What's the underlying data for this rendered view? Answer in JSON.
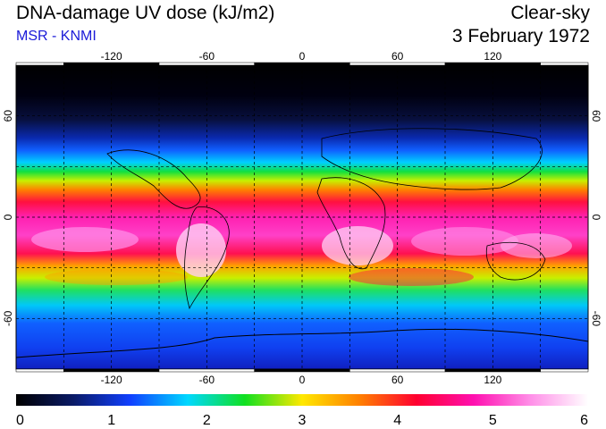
{
  "header": {
    "title": "DNA-damage UV dose (kJ/m2)",
    "subtitle": "MSR - KNMI",
    "condition": "Clear-sky",
    "date": "3 February 1972"
  },
  "map": {
    "lon_ticks": [
      "-120",
      "-60",
      "0",
      "60",
      "120"
    ],
    "lat_ticks": [
      "60",
      "0",
      "-60"
    ],
    "lon_values": [
      -120,
      -60,
      0,
      60,
      120
    ],
    "lat_values": [
      60,
      0,
      -60
    ],
    "lon_range": [
      -180,
      180
    ],
    "lat_range": [
      -90,
      90
    ],
    "grid_lon_step": 30,
    "grid_lat_step": 30
  },
  "colorbar": {
    "min": 0,
    "max": 6,
    "labels": [
      "0",
      "1",
      "2",
      "3",
      "4",
      "5",
      "6"
    ],
    "colors": [
      "#000000",
      "#0a1a66",
      "#1040ff",
      "#00d8ff",
      "#10e020",
      "#ffe800",
      "#ff8000",
      "#ff0030",
      "#ff10b0",
      "#ff90e8",
      "#ffffff"
    ]
  }
}
